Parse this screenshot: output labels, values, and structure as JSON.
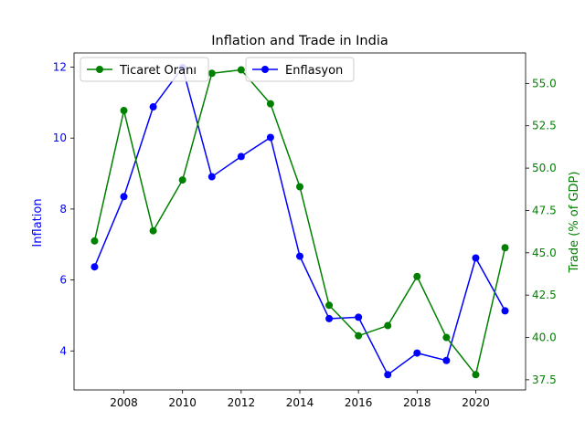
{
  "chart_data": {
    "type": "line",
    "title": "Inflation and Trade in India",
    "xlabel": "",
    "x": [
      2007,
      2008,
      2009,
      2010,
      2011,
      2012,
      2013,
      2014,
      2015,
      2016,
      2017,
      2018,
      2019,
      2020,
      2021
    ],
    "x_ticks": [
      2008,
      2010,
      2012,
      2014,
      2016,
      2018,
      2020
    ],
    "xlim": [
      2006.3,
      2021.7
    ],
    "left_axis": {
      "label": "Inflation",
      "color": "#0000ff",
      "ylim": [
        2.9,
        12.4
      ],
      "ticks": [
        4,
        6,
        8,
        10,
        12
      ]
    },
    "right_axis": {
      "label": "Trade (% of GDP)",
      "color": "#008000",
      "ylim": [
        36.9,
        56.8
      ],
      "ticks": [
        "37.5",
        "40.0",
        "42.5",
        "45.0",
        "47.5",
        "50.0",
        "52.5",
        "55.0"
      ]
    },
    "series": [
      {
        "name": "Enflasyon",
        "axis": "left",
        "color": "#0000ff",
        "values": [
          6.37,
          8.35,
          10.88,
          11.99,
          8.91,
          9.48,
          10.02,
          6.67,
          4.91,
          4.95,
          3.33,
          3.94,
          3.73,
          6.62,
          5.13
        ]
      },
      {
        "name": "Ticaret Oranı",
        "axis": "right",
        "color": "#008000",
        "values": [
          45.7,
          53.4,
          46.3,
          49.3,
          55.6,
          55.8,
          53.8,
          48.9,
          41.9,
          40.1,
          40.7,
          43.6,
          40.0,
          37.8,
          45.3
        ]
      }
    ],
    "legend_placement": "top-left",
    "grid": false
  }
}
